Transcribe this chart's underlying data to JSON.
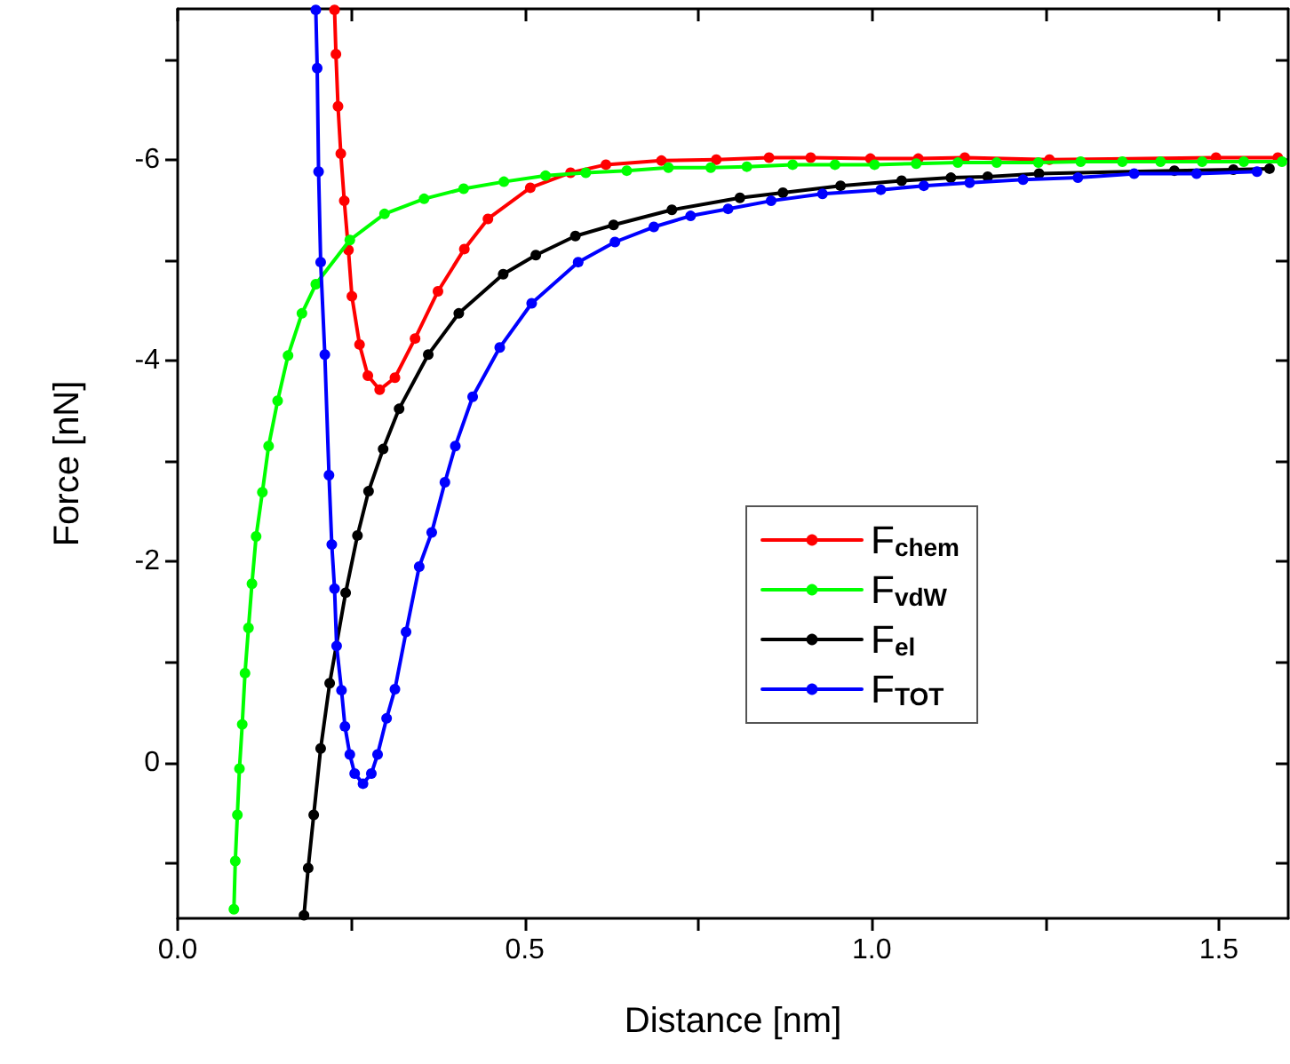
{
  "chart_data": {
    "type": "line",
    "xlabel": "Distance [nm]",
    "ylabel": "Force [nN]",
    "xlim": [
      0,
      1.6
    ],
    "ylim": [
      1.55,
      -7.5
    ],
    "xticks": [
      {
        "value": 0,
        "label": "0.0"
      },
      {
        "value": 0.25,
        "label": null
      },
      {
        "value": 0.5,
        "label": "0.5"
      },
      {
        "value": 0.75,
        "label": null
      },
      {
        "value": 1,
        "label": "1.0"
      },
      {
        "value": 1.25,
        "label": null
      },
      {
        "value": 1.5,
        "label": "1.5"
      }
    ],
    "yticks": [
      {
        "value": -7,
        "label": null
      },
      -6,
      {
        "value": -5,
        "label": null
      },
      -4,
      {
        "value": -3,
        "label": null
      },
      -2,
      {
        "value": -1,
        "label": null
      },
      0,
      {
        "value": 1,
        "label": null
      }
    ],
    "grid": false,
    "legend": "center",
    "marker": "circle",
    "line_style": "solid",
    "series": [
      {
        "name": "F$_{chem}$",
        "color": "#ff0000",
        "x": [
          0.226,
          0.228,
          0.231,
          0.235,
          0.24,
          0.246,
          0.251,
          0.262,
          0.274,
          0.291,
          0.313,
          0.342,
          0.375,
          0.413,
          0.447,
          0.508,
          0.566,
          0.617,
          0.697,
          0.776,
          0.852,
          0.912,
          0.998,
          1.067,
          1.134,
          1.256,
          1.496,
          1.585
        ],
        "values": [
          -7.49,
          -7.05,
          -6.53,
          -6.06,
          -5.59,
          -5.1,
          -4.64,
          -4.16,
          -3.85,
          -3.71,
          -3.83,
          -4.22,
          -4.69,
          -5.11,
          -5.41,
          -5.72,
          -5.87,
          -5.95,
          -5.99,
          -6.0,
          -6.02,
          -6.02,
          -6.01,
          -6.01,
          -6.02,
          -6.0,
          -6.02,
          -6.02
        ]
      },
      {
        "name": "F$_{vdW}$",
        "color": "#00ff00",
        "x": [
          0.081,
          0.083,
          0.086,
          0.089,
          0.093,
          0.097,
          0.102,
          0.107,
          0.113,
          0.122,
          0.131,
          0.144,
          0.159,
          0.179,
          0.199,
          0.248,
          0.298,
          0.355,
          0.412,
          0.47,
          0.53,
          0.588,
          0.647,
          0.707,
          0.768,
          0.82,
          0.886,
          0.947,
          1.004,
          1.064,
          1.124,
          1.18,
          1.24,
          1.301,
          1.361,
          1.416,
          1.476,
          1.536,
          1.591
        ],
        "values": [
          1.46,
          0.98,
          0.52,
          0.06,
          -0.38,
          -0.89,
          -1.34,
          -1.78,
          -2.25,
          -2.69,
          -3.15,
          -3.6,
          -4.05,
          -4.47,
          -4.76,
          -5.2,
          -5.46,
          -5.61,
          -5.71,
          -5.78,
          -5.84,
          -5.87,
          -5.89,
          -5.92,
          -5.92,
          -5.93,
          -5.95,
          -5.95,
          -5.95,
          -5.96,
          -5.97,
          -5.97,
          -5.97,
          -5.98,
          -5.98,
          -5.98,
          -5.98,
          -5.98,
          -5.98
        ]
      },
      {
        "name": "F$_{el}$",
        "color": "#000000",
        "x": [
          0.182,
          0.188,
          0.196,
          0.206,
          0.219,
          0.242,
          0.259,
          0.275,
          0.296,
          0.319,
          0.361,
          0.405,
          0.469,
          0.516,
          0.573,
          0.628,
          0.712,
          0.81,
          0.872,
          0.955,
          1.043,
          1.114,
          1.167,
          1.241,
          1.436,
          1.521,
          1.573
        ],
        "values": [
          1.52,
          1.05,
          0.52,
          -0.14,
          -0.79,
          -1.69,
          -2.26,
          -2.7,
          -3.12,
          -3.52,
          -4.06,
          -4.47,
          -4.86,
          -5.05,
          -5.24,
          -5.35,
          -5.5,
          -5.62,
          -5.67,
          -5.74,
          -5.79,
          -5.82,
          -5.83,
          -5.86,
          -5.89,
          -5.9,
          -5.91
        ]
      },
      {
        "name": "F$_{TOT}$",
        "color": "#0000ff",
        "x": [
          0.199,
          0.201,
          0.203,
          0.206,
          0.212,
          0.218,
          0.222,
          0.226,
          0.229,
          0.236,
          0.241,
          0.248,
          0.255,
          0.267,
          0.279,
          0.288,
          0.301,
          0.313,
          0.329,
          0.348,
          0.366,
          0.385,
          0.4,
          0.425,
          0.464,
          0.51,
          0.577,
          0.63,
          0.686,
          0.739,
          0.793,
          0.855,
          0.929,
          1.013,
          1.075,
          1.141,
          1.218,
          1.297,
          1.378,
          1.468,
          1.555
        ],
        "values": [
          -7.49,
          -6.91,
          -5.88,
          -4.98,
          -4.06,
          -2.86,
          -2.17,
          -1.73,
          -1.16,
          -0.72,
          -0.36,
          -0.08,
          0.11,
          0.21,
          0.11,
          -0.08,
          -0.44,
          -0.73,
          -1.3,
          -1.95,
          -2.29,
          -2.79,
          -3.15,
          -3.64,
          -4.13,
          -4.57,
          -4.98,
          -5.18,
          -5.33,
          -5.44,
          -5.51,
          -5.59,
          -5.66,
          -5.7,
          -5.74,
          -5.77,
          -5.8,
          -5.82,
          -5.86,
          -5.86,
          -5.88
        ]
      }
    ]
  }
}
